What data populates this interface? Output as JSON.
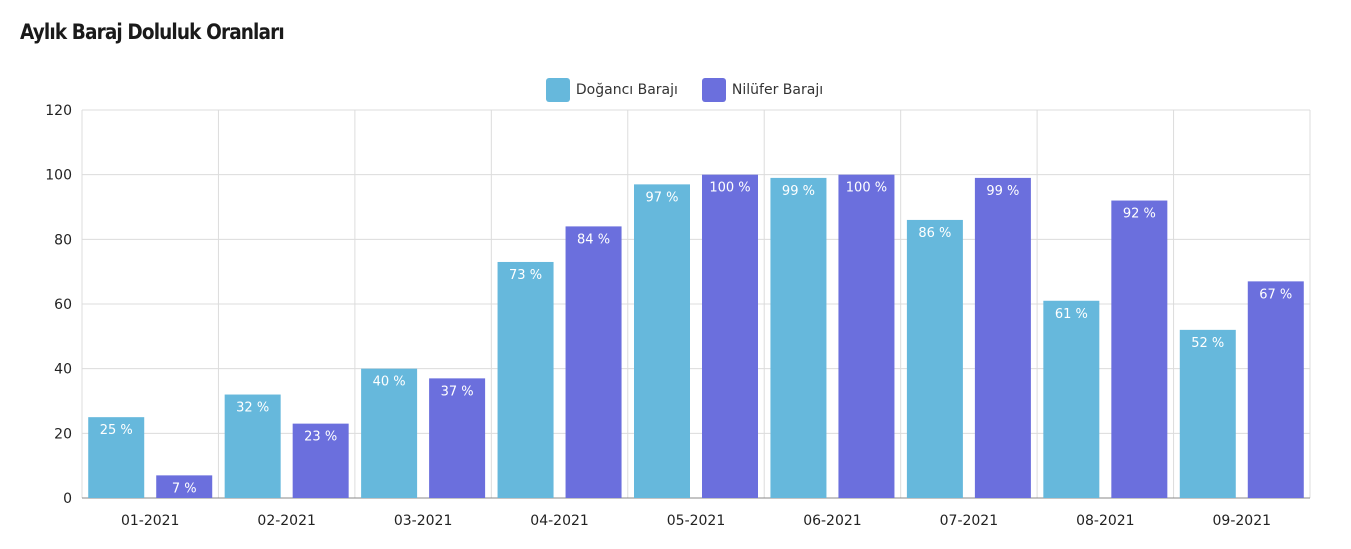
{
  "title": "Aylık Baraj Doluluk Oranları",
  "chart_data": {
    "type": "bar",
    "title": "Aylık Baraj Doluluk Oranları",
    "categories": [
      "01-2021",
      "02-2021",
      "03-2021",
      "04-2021",
      "05-2021",
      "06-2021",
      "07-2021",
      "08-2021",
      "09-2021"
    ],
    "series": [
      {
        "name": "Doğancı Barajı",
        "color": "#66b8dc",
        "values": [
          25,
          32,
          40,
          73,
          97,
          99,
          86,
          61,
          52
        ],
        "labels": [
          "25 %",
          "32 %",
          "40 %",
          "73 %",
          "97 %",
          "99 %",
          "86 %",
          "61 %",
          "52 %"
        ]
      },
      {
        "name": "Nilüfer Barajı",
        "color": "#6b6fdd",
        "values": [
          7,
          23,
          37,
          84,
          100,
          100,
          99,
          92,
          67
        ],
        "labels": [
          "7 %",
          "23 %",
          "37 %",
          "84 %",
          "100 %",
          "100 %",
          "99 %",
          "92 %",
          "67 %"
        ]
      }
    ],
    "ylim": [
      0,
      120
    ],
    "yticks": [
      "0",
      "20",
      "40",
      "60",
      "80",
      "100",
      "120"
    ],
    "grid": true,
    "legend_position": "top-center"
  }
}
